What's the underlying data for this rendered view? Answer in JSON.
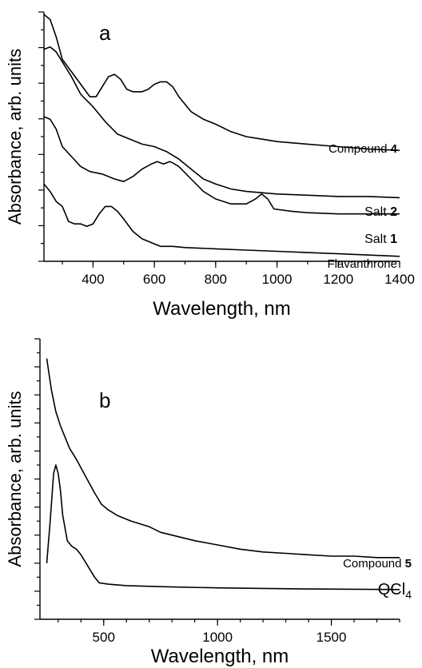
{
  "chart_data": [
    {
      "type": "line",
      "panel_label": "a",
      "xlabel": "Wavelength, nm",
      "ylabel": "Absorbance, arb. units",
      "xlim": [
        240,
        1400
      ],
      "ylim": [
        0,
        10
      ],
      "x_ticks": [
        400,
        600,
        800,
        1000,
        1200,
        1400
      ],
      "x_tick_labels": [
        "400",
        "600",
        "800",
        "1000",
        "1200",
        "1400"
      ],
      "y_tick_labels_shown": false,
      "series": [
        {
          "name": "Compound 4",
          "label_parts": [
            "Compound ",
            "4"
          ],
          "points": [
            [
              240,
              9.9
            ],
            [
              260,
              9.7
            ],
            [
              280,
              9.0
            ],
            [
              300,
              8.1
            ],
            [
              330,
              7.6
            ],
            [
              360,
              7.1
            ],
            [
              390,
              6.6
            ],
            [
              410,
              6.6
            ],
            [
              430,
              7.0
            ],
            [
              450,
              7.4
            ],
            [
              470,
              7.5
            ],
            [
              490,
              7.3
            ],
            [
              510,
              6.9
            ],
            [
              530,
              6.8
            ],
            [
              560,
              6.8
            ],
            [
              580,
              6.9
            ],
            [
              600,
              7.1
            ],
            [
              620,
              7.2
            ],
            [
              640,
              7.2
            ],
            [
              660,
              7.0
            ],
            [
              680,
              6.6
            ],
            [
              720,
              6.0
            ],
            [
              760,
              5.7
            ],
            [
              800,
              5.5
            ],
            [
              850,
              5.2
            ],
            [
              900,
              5.0
            ],
            [
              950,
              4.9
            ],
            [
              1000,
              4.8
            ],
            [
              1100,
              4.7
            ],
            [
              1200,
              4.6
            ],
            [
              1300,
              4.5
            ],
            [
              1400,
              4.45
            ]
          ]
        },
        {
          "name": "Salt 2",
          "label_parts": [
            "Salt ",
            "2"
          ],
          "points": [
            [
              240,
              8.5
            ],
            [
              260,
              8.6
            ],
            [
              280,
              8.4
            ],
            [
              300,
              8.0
            ],
            [
              330,
              7.4
            ],
            [
              360,
              6.7
            ],
            [
              400,
              6.2
            ],
            [
              440,
              5.6
            ],
            [
              480,
              5.1
            ],
            [
              520,
              4.9
            ],
            [
              560,
              4.7
            ],
            [
              600,
              4.6
            ],
            [
              640,
              4.4
            ],
            [
              680,
              4.1
            ],
            [
              720,
              3.7
            ],
            [
              760,
              3.3
            ],
            [
              800,
              3.1
            ],
            [
              850,
              2.9
            ],
            [
              900,
              2.8
            ],
            [
              1000,
              2.7
            ],
            [
              1100,
              2.65
            ],
            [
              1200,
              2.6
            ],
            [
              1300,
              2.6
            ],
            [
              1400,
              2.55
            ]
          ]
        },
        {
          "name": "Salt 1",
          "label_parts": [
            "Salt ",
            "1"
          ],
          "points": [
            [
              240,
              5.8
            ],
            [
              260,
              5.7
            ],
            [
              280,
              5.3
            ],
            [
              300,
              4.6
            ],
            [
              330,
              4.2
            ],
            [
              360,
              3.8
            ],
            [
              390,
              3.6
            ],
            [
              430,
              3.5
            ],
            [
              470,
              3.3
            ],
            [
              500,
              3.2
            ],
            [
              530,
              3.4
            ],
            [
              560,
              3.7
            ],
            [
              590,
              3.9
            ],
            [
              610,
              4.0
            ],
            [
              630,
              3.9
            ],
            [
              650,
              4.0
            ],
            [
              660,
              3.95
            ],
            [
              680,
              3.8
            ],
            [
              720,
              3.3
            ],
            [
              760,
              2.8
            ],
            [
              800,
              2.5
            ],
            [
              850,
              2.3
            ],
            [
              900,
              2.3
            ],
            [
              930,
              2.5
            ],
            [
              950,
              2.7
            ],
            [
              970,
              2.5
            ],
            [
              990,
              2.1
            ],
            [
              1050,
              2.0
            ],
            [
              1100,
              1.95
            ],
            [
              1200,
              1.9
            ],
            [
              1300,
              1.9
            ],
            [
              1400,
              1.9
            ]
          ]
        },
        {
          "name": "Flavanthrone",
          "label_parts": [
            "Flavanthrone",
            ""
          ],
          "points": [
            [
              240,
              3.1
            ],
            [
              260,
              2.8
            ],
            [
              280,
              2.4
            ],
            [
              300,
              2.2
            ],
            [
              310,
              1.9
            ],
            [
              320,
              1.6
            ],
            [
              340,
              1.5
            ],
            [
              360,
              1.5
            ],
            [
              380,
              1.4
            ],
            [
              400,
              1.5
            ],
            [
              420,
              1.9
            ],
            [
              440,
              2.2
            ],
            [
              460,
              2.2
            ],
            [
              480,
              2.0
            ],
            [
              500,
              1.7
            ],
            [
              530,
              1.2
            ],
            [
              560,
              0.9
            ],
            [
              580,
              0.8
            ],
            [
              600,
              0.7
            ],
            [
              620,
              0.6
            ],
            [
              660,
              0.6
            ],
            [
              700,
              0.55
            ],
            [
              800,
              0.5
            ],
            [
              900,
              0.45
            ],
            [
              1000,
              0.4
            ],
            [
              1100,
              0.35
            ],
            [
              1200,
              0.3
            ],
            [
              1300,
              0.25
            ],
            [
              1400,
              0.2
            ]
          ]
        }
      ]
    },
    {
      "type": "line",
      "panel_label": "b",
      "xlabel": "Wavelength, nm",
      "ylabel": "Absorbance, arb. units",
      "xlim": [
        220,
        1800
      ],
      "ylim": [
        0,
        10
      ],
      "x_ticks": [
        500,
        1000,
        1500
      ],
      "x_tick_labels": [
        "500",
        "1000",
        "1500"
      ],
      "y_tick_labels_shown": false,
      "series": [
        {
          "name": "Compound 5",
          "label_parts": [
            "Compound ",
            "5"
          ],
          "points": [
            [
              250,
              9.3
            ],
            [
              270,
              8.2
            ],
            [
              290,
              7.4
            ],
            [
              310,
              6.9
            ],
            [
              330,
              6.5
            ],
            [
              350,
              6.1
            ],
            [
              380,
              5.7
            ],
            [
              420,
              5.1
            ],
            [
              460,
              4.5
            ],
            [
              490,
              4.1
            ],
            [
              520,
              3.9
            ],
            [
              560,
              3.7
            ],
            [
              620,
              3.5
            ],
            [
              680,
              3.35
            ],
            [
              700,
              3.3
            ],
            [
              750,
              3.1
            ],
            [
              800,
              3.0
            ],
            [
              900,
              2.8
            ],
            [
              1000,
              2.65
            ],
            [
              1100,
              2.5
            ],
            [
              1200,
              2.4
            ],
            [
              1300,
              2.35
            ],
            [
              1400,
              2.3
            ],
            [
              1500,
              2.25
            ],
            [
              1600,
              2.25
            ],
            [
              1700,
              2.2
            ],
            [
              1800,
              2.2
            ]
          ]
        },
        {
          "name": "QCl4",
          "label_parts": [
            "QCl",
            "4"
          ],
          "points": [
            [
              250,
              2.0
            ],
            [
              265,
              3.5
            ],
            [
              280,
              5.2
            ],
            [
              290,
              5.5
            ],
            [
              300,
              5.2
            ],
            [
              310,
              4.6
            ],
            [
              320,
              3.7
            ],
            [
              340,
              2.8
            ],
            [
              360,
              2.6
            ],
            [
              380,
              2.5
            ],
            [
              400,
              2.3
            ],
            [
              430,
              1.9
            ],
            [
              460,
              1.5
            ],
            [
              480,
              1.3
            ],
            [
              520,
              1.25
            ],
            [
              600,
              1.2
            ],
            [
              800,
              1.15
            ],
            [
              1000,
              1.12
            ],
            [
              1200,
              1.1
            ],
            [
              1400,
              1.08
            ],
            [
              1600,
              1.07
            ],
            [
              1800,
              1.06
            ]
          ]
        }
      ]
    }
  ]
}
